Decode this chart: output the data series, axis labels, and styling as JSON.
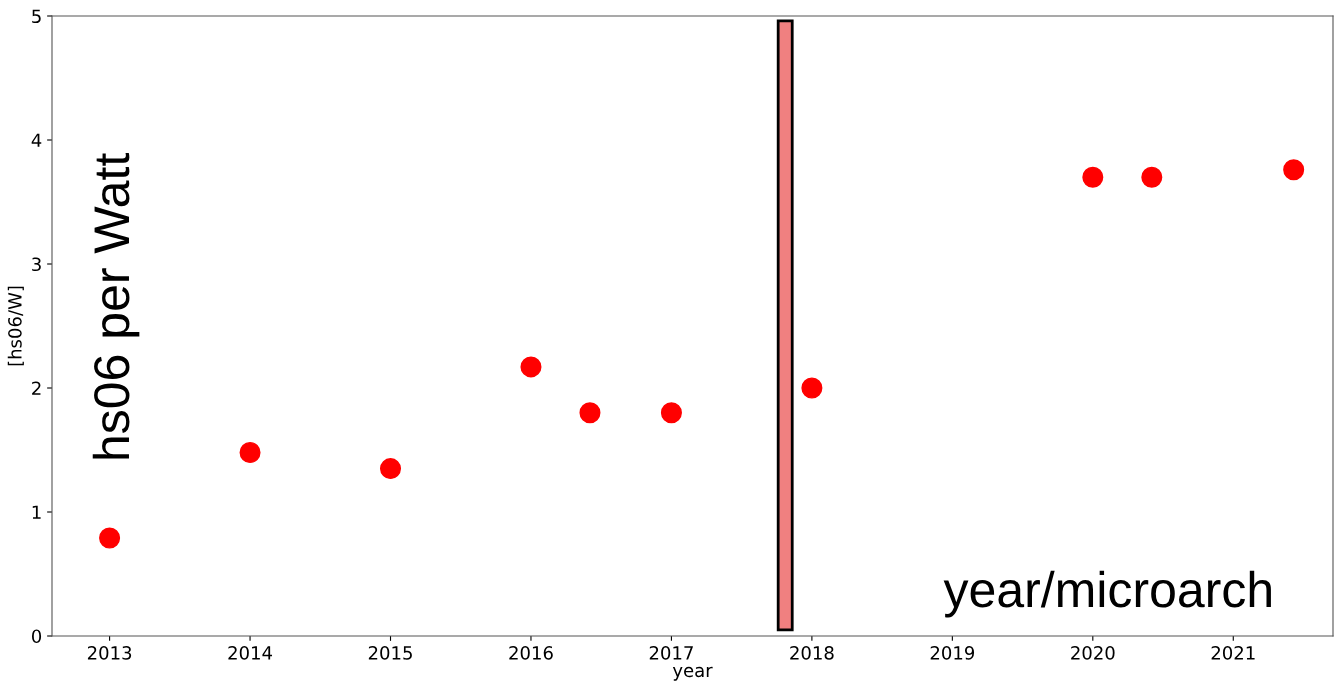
{
  "chart_data": {
    "type": "scatter",
    "xlabel": "year",
    "ylabel": "[hs06/W]",
    "annotations": [
      "hs06 per Watt",
      "year/microarch"
    ],
    "series": [
      {
        "color": "#ff0000",
        "x": [
          2013,
          2014,
          2015,
          2016,
          2016.42,
          2017,
          2018,
          2020,
          2020.42,
          2021.43
        ],
        "values": [
          0.79,
          1.48,
          1.35,
          2.17,
          1.8,
          1.8,
          2.0,
          3.7,
          3.7,
          3.76
        ]
      },
      {
        "type": "bar",
        "color": "#f08080",
        "x": [
          2017.81
        ],
        "base": [
          0.05
        ],
        "values": [
          4.91
        ]
      }
    ],
    "xlim": [
      2012.59,
      2021.71
    ],
    "ylim": [
      0,
      5
    ],
    "xticks": [
      2013,
      2014,
      2015,
      2016,
      2017,
      2018,
      2019,
      2020,
      2021
    ],
    "yticks": [
      0,
      1,
      2,
      3,
      4,
      5
    ],
    "grid": false,
    "legend": false,
    "marker": "circle"
  }
}
